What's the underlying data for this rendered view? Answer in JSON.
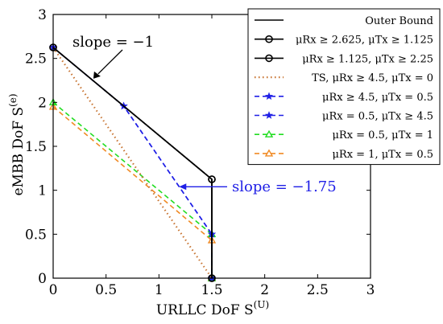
{
  "chart_data": {
    "type": "line",
    "xlabel": "URLLC DoF S",
    "xlabel_sup": "(U)",
    "ylabel": "eMBB DoF S",
    "ylabel_sup": "(e)",
    "xlim": [
      0,
      3
    ],
    "ylim": [
      0,
      3
    ],
    "xticks": [
      0,
      0.5,
      1,
      1.5,
      2,
      2.5,
      3
    ],
    "xtick_labels": [
      "0",
      "0.5",
      "1",
      "1.5",
      "2",
      "2.5",
      "3"
    ],
    "yticks": [
      0,
      0.5,
      1,
      1.5,
      2,
      2.5,
      3
    ],
    "ytick_labels": [
      "0",
      "0.5",
      "1",
      "1.5",
      "2",
      "2.5",
      "3"
    ],
    "grid": false,
    "legend_position": "top-right",
    "series": [
      {
        "name": "Outer Bound",
        "color": "#000000",
        "dash": "solid",
        "marker": "none",
        "x": [
          0,
          0.667,
          1.5,
          1.5
        ],
        "y": [
          2.625,
          1.958,
          1.125,
          0
        ]
      },
      {
        "name": "μRx ≥ 2.625, μTx ≥ 1.125",
        "color": "#000000",
        "dash": "solid",
        "marker": "circle",
        "x": [
          0,
          1.5,
          1.5
        ],
        "y": [
          2.625,
          1.125,
          0
        ]
      },
      {
        "name": "μRx ≥ 1.125, μTx ≥ 2.25",
        "color": "#000000",
        "dash": "solid",
        "marker": "circle",
        "x": [
          0,
          1.5,
          1.5
        ],
        "y": [
          2.625,
          1.125,
          0
        ]
      },
      {
        "name": "TS, μRx ≥ 4.5, μTx = 0",
        "color": "#c87533",
        "dash": "dotted",
        "marker": "none",
        "x": [
          0,
          1.5
        ],
        "y": [
          2.625,
          0
        ]
      },
      {
        "name": "μRx ≥ 4.5, μTx = 0.5",
        "color": "#1f1fe6",
        "dash": "dashed",
        "marker": "star",
        "x": [
          0,
          0.667,
          1.5,
          1.5
        ],
        "y": [
          2.625,
          1.958,
          0.5,
          0
        ]
      },
      {
        "name": "μRx = 0.5, μTx ≥ 4.5",
        "color": "#1f1fe6",
        "dash": "dashed",
        "marker": "star",
        "x": [
          0,
          0.667,
          1.5,
          1.5
        ],
        "y": [
          2.625,
          1.958,
          0.5,
          0
        ]
      },
      {
        "name": "μRx = 0.5, μTx = 1",
        "color": "#22dd22",
        "dash": "dashed",
        "marker": "tri",
        "x": [
          0,
          1.5,
          1.5
        ],
        "y": [
          2.0,
          0.5,
          0
        ]
      },
      {
        "name": "μRx = 1, μTx = 0.5",
        "color": "#f08a24",
        "dash": "dashed",
        "marker": "tri",
        "x": [
          0,
          1.5,
          1.5
        ],
        "y": [
          1.95,
          0.43,
          0
        ]
      }
    ],
    "annotations": [
      {
        "text": "slope = −1",
        "color": "#000000",
        "target": [
          0.38,
          2.27
        ]
      },
      {
        "text": "slope = −1.75",
        "color": "#1f1fe6",
        "target": [
          1.19,
          1.04
        ]
      }
    ]
  }
}
